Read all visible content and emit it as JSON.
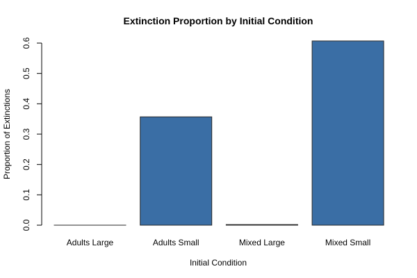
{
  "chart_data": {
    "type": "bar",
    "title": "Extinction Proportion by Initial Condition",
    "xlabel": "Initial Condition",
    "ylabel": "Proportion of Extinctions",
    "categories": [
      "Adults Large",
      "Adults Small",
      "Mixed Large",
      "Mixed Small"
    ],
    "values": [
      0.0,
      0.357,
      0.002,
      0.607
    ],
    "ylim": [
      0,
      0.6
    ],
    "yticks": [
      "0.0",
      "0.1",
      "0.2",
      "0.3",
      "0.4",
      "0.5",
      "0.6"
    ],
    "bar_color": "#3a6ea5",
    "grid": false,
    "legend": "none"
  }
}
